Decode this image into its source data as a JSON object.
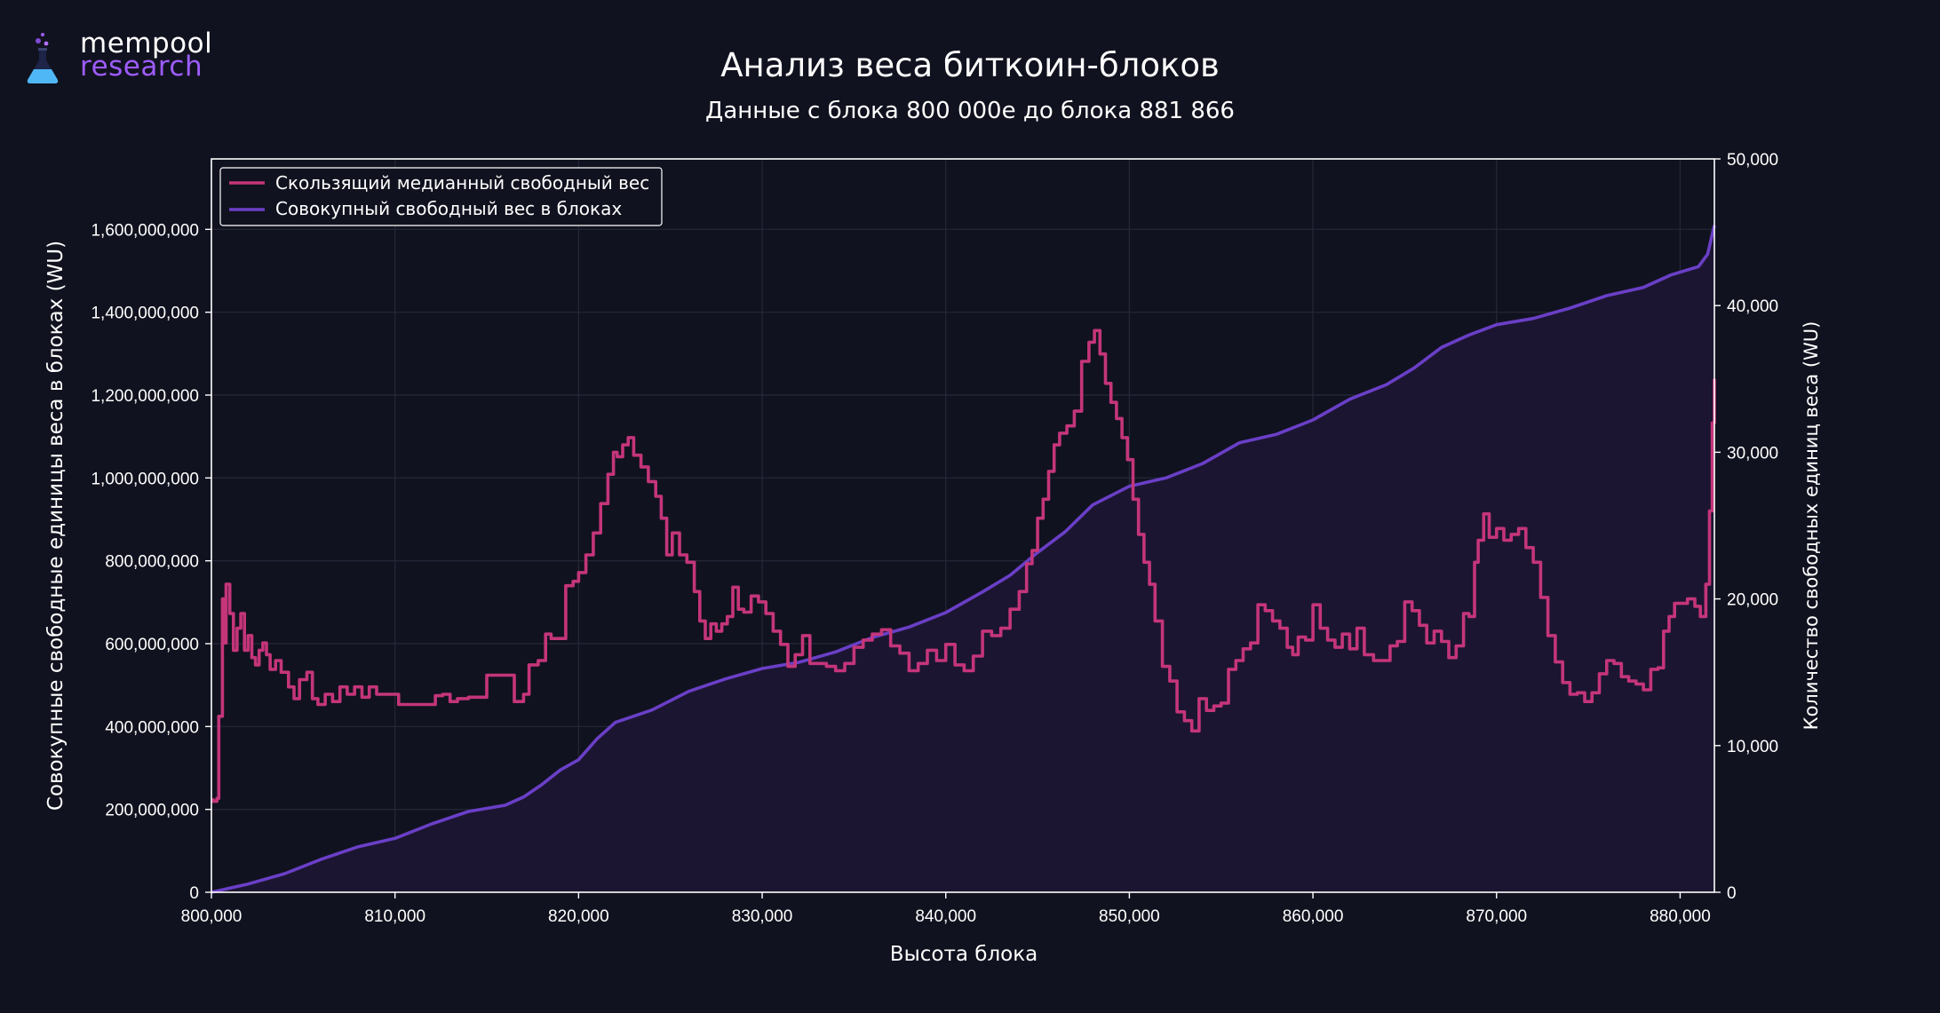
{
  "logo": {
    "line1": "mempool",
    "line2": "research"
  },
  "title": "Анализ веса биткоин-блоков",
  "subtitle": "Данные с блока 800 000е до блока 881 866",
  "colors": {
    "background": "#11121f",
    "median": "#c4357a",
    "cumulative": "#6a3fc7",
    "fill": "#1d1635",
    "grid": "#2a2c3d",
    "axis": "#ffffff"
  },
  "chart_data": {
    "type": "line",
    "title": "Анализ веса биткоин-блоков",
    "subtitle": "Данные с блока 800 000е до блока 881 866",
    "xlabel": "Высота блока",
    "ylabel_left": "Совокупные свободные единицы веса в блоках (WU)",
    "ylabel_right": "Количество свободных единиц веса (WU)",
    "xlim": [
      800000,
      881866
    ],
    "ylim_left": [
      0,
      1770000000
    ],
    "ylim_right": [
      0,
      50000
    ],
    "x_ticks": [
      "800,000",
      "810,000",
      "820,000",
      "830,000",
      "840,000",
      "850,000",
      "860,000",
      "870,000",
      "880,000"
    ],
    "y_left_ticks": [
      "0",
      "200,000,000",
      "400,000,000",
      "600,000,000",
      "800,000,000",
      "1,000,000,000",
      "1,200,000,000",
      "1,400,000,000",
      "1,600,000,000"
    ],
    "y_right_ticks": [
      "0",
      "10,000",
      "20,000",
      "30,000",
      "40,000",
      "50,000"
    ],
    "grid": true,
    "legend_position": "top-left",
    "series": [
      {
        "name": "Скользящий медианный свободный вес",
        "axis": "right",
        "color": "#c4357a",
        "points": [
          [
            800000,
            6300
          ],
          [
            100,
            6200
          ],
          [
            300,
            6400
          ],
          [
            400,
            12000
          ],
          [
            600,
            20000
          ],
          [
            700,
            17000
          ],
          [
            800,
            21000
          ],
          [
            1000,
            19000
          ],
          [
            1200,
            16500
          ],
          [
            1400,
            18000
          ],
          [
            1600,
            19000
          ],
          [
            1800,
            16500
          ],
          [
            2000,
            17500
          ],
          [
            2200,
            16000
          ],
          [
            2400,
            15500
          ],
          [
            2600,
            16500
          ],
          [
            2800,
            17000
          ],
          [
            3000,
            16200
          ],
          [
            3200,
            15200
          ],
          [
            3500,
            15800
          ],
          [
            3800,
            15000
          ],
          [
            4200,
            14000
          ],
          [
            4500,
            13200
          ],
          [
            4800,
            14500
          ],
          [
            5200,
            15000
          ],
          [
            5500,
            13200
          ],
          [
            5800,
            12800
          ],
          [
            6200,
            13500
          ],
          [
            6600,
            13000
          ],
          [
            7000,
            14000
          ],
          [
            7400,
            13500
          ],
          [
            7800,
            14000
          ],
          [
            8200,
            13300
          ],
          [
            8600,
            14000
          ],
          [
            9000,
            13500
          ],
          [
            9400,
            13500
          ],
          [
            9800,
            13500
          ],
          [
            10200,
            12800
          ],
          [
            10600,
            12800
          ],
          [
            11000,
            12800
          ],
          [
            11400,
            12800
          ],
          [
            11800,
            12800
          ],
          [
            12200,
            13400
          ],
          [
            12600,
            13500
          ],
          [
            13000,
            13000
          ],
          [
            13400,
            13200
          ],
          [
            14000,
            13300
          ],
          [
            14500,
            13300
          ],
          [
            15000,
            14800
          ],
          [
            15500,
            14800
          ],
          [
            16000,
            14800
          ],
          [
            16500,
            13000
          ],
          [
            17000,
            13500
          ],
          [
            17300,
            15500
          ],
          [
            17800,
            15800
          ],
          [
            18200,
            17600
          ],
          [
            18500,
            17300
          ],
          [
            19000,
            17300
          ],
          [
            19300,
            20900
          ],
          [
            19700,
            21200
          ],
          [
            20000,
            21800
          ],
          [
            20400,
            23000
          ],
          [
            20800,
            24500
          ],
          [
            21200,
            26500
          ],
          [
            21600,
            28500
          ],
          [
            21900,
            30000
          ],
          [
            22100,
            29700
          ],
          [
            22400,
            30500
          ],
          [
            22700,
            31000
          ],
          [
            23000,
            29800
          ],
          [
            23400,
            29000
          ],
          [
            23800,
            28000
          ],
          [
            24200,
            27000
          ],
          [
            24500,
            25500
          ],
          [
            24800,
            23000
          ],
          [
            25100,
            24500
          ],
          [
            25500,
            23000
          ],
          [
            25900,
            22500
          ],
          [
            26300,
            20500
          ],
          [
            26600,
            18500
          ],
          [
            26900,
            17300
          ],
          [
            27200,
            18300
          ],
          [
            27500,
            17800
          ],
          [
            27800,
            18300
          ],
          [
            28100,
            18800
          ],
          [
            28400,
            20800
          ],
          [
            28700,
            19300
          ],
          [
            29000,
            19100
          ],
          [
            29400,
            20200
          ],
          [
            29800,
            19800
          ],
          [
            30200,
            19000
          ],
          [
            30600,
            17800
          ],
          [
            31000,
            16900
          ],
          [
            31400,
            15400
          ],
          [
            31800,
            16200
          ],
          [
            32200,
            17500
          ],
          [
            32600,
            15600
          ],
          [
            33000,
            15600
          ],
          [
            33500,
            15400
          ],
          [
            34000,
            15100
          ],
          [
            34500,
            15600
          ],
          [
            35000,
            16700
          ],
          [
            35500,
            17200
          ],
          [
            36000,
            17600
          ],
          [
            36500,
            17900
          ],
          [
            37000,
            16800
          ],
          [
            37500,
            16300
          ],
          [
            38000,
            15100
          ],
          [
            38500,
            15600
          ],
          [
            39000,
            16500
          ],
          [
            39500,
            15800
          ],
          [
            40000,
            16900
          ],
          [
            40500,
            15500
          ],
          [
            41000,
            15100
          ],
          [
            41500,
            16100
          ],
          [
            42000,
            17800
          ],
          [
            42500,
            17500
          ],
          [
            43000,
            18000
          ],
          [
            43500,
            19300
          ],
          [
            44000,
            20500
          ],
          [
            44400,
            22400
          ],
          [
            44700,
            23300
          ],
          [
            45000,
            25500
          ],
          [
            45300,
            26800
          ],
          [
            45600,
            28700
          ],
          [
            45900,
            30500
          ],
          [
            46200,
            31300
          ],
          [
            46600,
            31800
          ],
          [
            47000,
            32800
          ],
          [
            47400,
            36200
          ],
          [
            47800,
            37500
          ],
          [
            48100,
            38300
          ],
          [
            48400,
            36700
          ],
          [
            48700,
            34700
          ],
          [
            49000,
            33400
          ],
          [
            49300,
            32300
          ],
          [
            49600,
            31000
          ],
          [
            49900,
            29500
          ],
          [
            50200,
            26800
          ],
          [
            50500,
            24400
          ],
          [
            50800,
            22500
          ],
          [
            51100,
            21000
          ],
          [
            51400,
            18500
          ],
          [
            51800,
            15400
          ],
          [
            52200,
            14400
          ],
          [
            52600,
            12300
          ],
          [
            53000,
            11700
          ],
          [
            53400,
            11000
          ],
          [
            53800,
            13200
          ],
          [
            54200,
            12400
          ],
          [
            54600,
            12700
          ],
          [
            55000,
            12900
          ],
          [
            55400,
            15200
          ],
          [
            55800,
            15800
          ],
          [
            56200,
            16600
          ],
          [
            56600,
            17000
          ],
          [
            57000,
            19600
          ],
          [
            57400,
            19200
          ],
          [
            57800,
            18500
          ],
          [
            58200,
            18000
          ],
          [
            58600,
            16700
          ],
          [
            58900,
            16200
          ],
          [
            59200,
            17400
          ],
          [
            59600,
            17200
          ],
          [
            60000,
            19600
          ],
          [
            60400,
            18000
          ],
          [
            60800,
            17200
          ],
          [
            61200,
            16700
          ],
          [
            61600,
            17600
          ],
          [
            62000,
            16600
          ],
          [
            62400,
            18000
          ],
          [
            62800,
            16200
          ],
          [
            63300,
            15800
          ],
          [
            63800,
            15800
          ],
          [
            64200,
            16800
          ],
          [
            64600,
            17100
          ],
          [
            65000,
            19800
          ],
          [
            65400,
            19200
          ],
          [
            65800,
            18200
          ],
          [
            66200,
            17000
          ],
          [
            66600,
            17800
          ],
          [
            67000,
            17100
          ],
          [
            67400,
            16000
          ],
          [
            67800,
            16800
          ],
          [
            68200,
            19000
          ],
          [
            68500,
            18800
          ],
          [
            68800,
            22500
          ],
          [
            69000,
            24000
          ],
          [
            69300,
            25800
          ],
          [
            69600,
            24200
          ],
          [
            70000,
            24800
          ],
          [
            70400,
            24000
          ],
          [
            70800,
            24400
          ],
          [
            71200,
            24800
          ],
          [
            71600,
            23500
          ],
          [
            72000,
            22500
          ],
          [
            72400,
            20100
          ],
          [
            72800,
            17500
          ],
          [
            73200,
            15700
          ],
          [
            73600,
            14300
          ],
          [
            74000,
            13500
          ],
          [
            74400,
            13600
          ],
          [
            74800,
            13000
          ],
          [
            75200,
            13600
          ],
          [
            75600,
            14900
          ],
          [
            76000,
            15800
          ],
          [
            76400,
            15600
          ],
          [
            76800,
            14700
          ],
          [
            77200,
            14400
          ],
          [
            77600,
            14200
          ],
          [
            78000,
            13800
          ],
          [
            78400,
            15200
          ],
          [
            78800,
            15300
          ],
          [
            79100,
            17800
          ],
          [
            79400,
            18800
          ],
          [
            79700,
            19700
          ],
          [
            80000,
            19700
          ],
          [
            80400,
            20000
          ],
          [
            80800,
            19500
          ],
          [
            81100,
            18800
          ],
          [
            81400,
            21000
          ],
          [
            81600,
            26000
          ],
          [
            81750,
            32000
          ],
          [
            81866,
            35000
          ]
        ]
      },
      {
        "name": "Совокупный свободный вес в блоках",
        "axis": "left",
        "color": "#6a3fc7",
        "points": [
          [
            800000,
            0
          ],
          [
            2000,
            20000000
          ],
          [
            4000,
            45000000
          ],
          [
            6000,
            80000000
          ],
          [
            8000,
            110000000
          ],
          [
            10000,
            130000000
          ],
          [
            12000,
            165000000
          ],
          [
            14000,
            195000000
          ],
          [
            16000,
            210000000
          ],
          [
            17000,
            230000000
          ],
          [
            18000,
            260000000
          ],
          [
            19000,
            295000000
          ],
          [
            20000,
            320000000
          ],
          [
            21000,
            370000000
          ],
          [
            22000,
            410000000
          ],
          [
            24000,
            440000000
          ],
          [
            26000,
            485000000
          ],
          [
            28000,
            515000000
          ],
          [
            30000,
            540000000
          ],
          [
            32000,
            555000000
          ],
          [
            34000,
            580000000
          ],
          [
            36000,
            615000000
          ],
          [
            38000,
            640000000
          ],
          [
            40000,
            675000000
          ],
          [
            42000,
            725000000
          ],
          [
            43500,
            765000000
          ],
          [
            45000,
            820000000
          ],
          [
            46500,
            870000000
          ],
          [
            48000,
            935000000
          ],
          [
            50000,
            980000000
          ],
          [
            52000,
            1000000000
          ],
          [
            54000,
            1035000000
          ],
          [
            56000,
            1085000000
          ],
          [
            58000,
            1105000000
          ],
          [
            60000,
            1140000000
          ],
          [
            62000,
            1190000000
          ],
          [
            64000,
            1225000000
          ],
          [
            65500,
            1265000000
          ],
          [
            67000,
            1315000000
          ],
          [
            68500,
            1345000000
          ],
          [
            70000,
            1370000000
          ],
          [
            72000,
            1385000000
          ],
          [
            74000,
            1410000000
          ],
          [
            76000,
            1440000000
          ],
          [
            78000,
            1460000000
          ],
          [
            79500,
            1490000000
          ],
          [
            81000,
            1510000000
          ],
          [
            81500,
            1540000000
          ],
          [
            81866,
            1610000000
          ]
        ]
      }
    ]
  }
}
